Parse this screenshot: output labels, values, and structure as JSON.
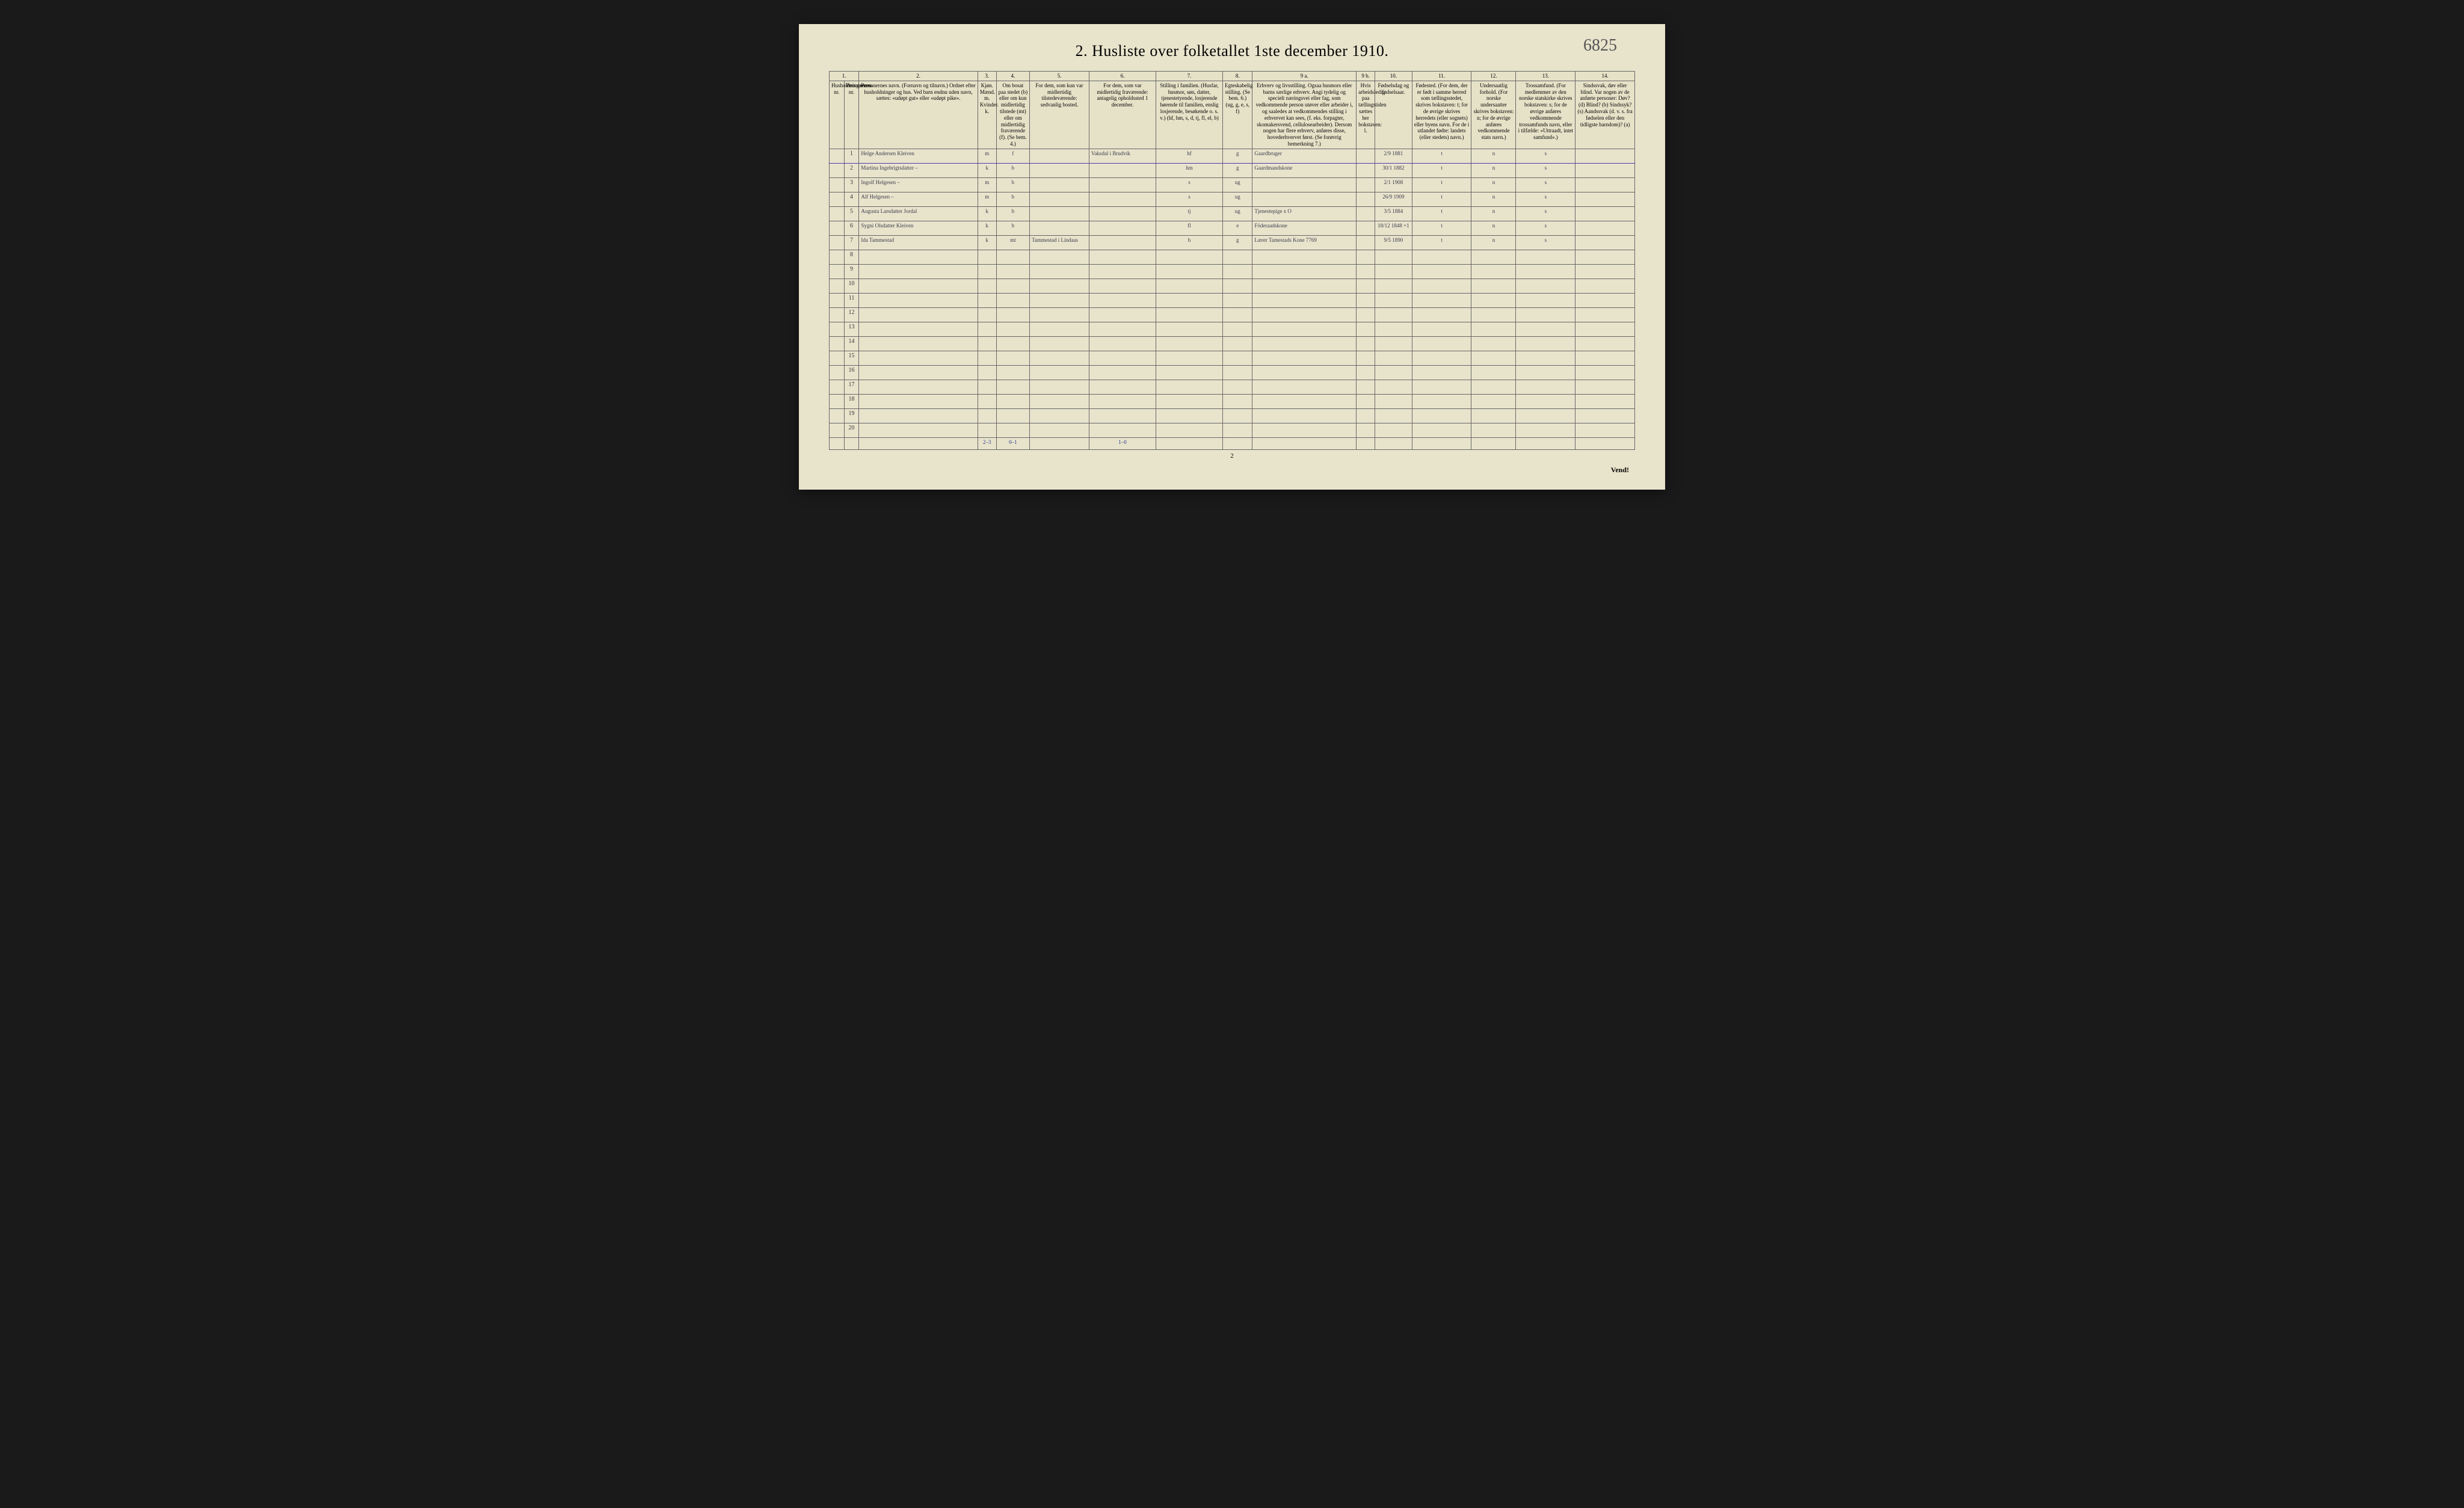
{
  "meta": {
    "title": "2.  Husliste over folketallet 1ste december 1910.",
    "page_number_handwritten": "6825",
    "page_center_number": "2",
    "vend": "Vend!",
    "background_color": "#e8e4cc",
    "border_color": "#666666",
    "handwriting_color": "#3a3a4a",
    "underline_color": "#4a3aa8",
    "footer_color": "#2b3a8a"
  },
  "columns": {
    "numbers": [
      "1.",
      "2.",
      "3.",
      "4.",
      "5.",
      "6.",
      "7.",
      "8.",
      "9 a.",
      "9 b.",
      "10.",
      "11.",
      "12.",
      "13.",
      "14."
    ],
    "widths_pct": [
      2,
      2,
      16,
      2.5,
      4.5,
      8,
      9,
      9,
      4,
      14,
      2.5,
      5,
      8,
      6,
      8,
      8
    ],
    "headers": [
      "Husholdningernes nr.",
      "Personernes nr.",
      "Personernes navn.\n(Fornavn og tilnavn.)\nOrdnet efter husholdninger og hus.\nVed barn endnu uden navn, sættes: «udøpt gut» eller «udøpt pike».",
      "Kjøn.\nMænd. m.  Kvinder. k.",
      "Om bosat paa stedet (b) eller om kun midlertidig tilstede (mt) eller om midlertidig fraværende (f). (Se bem. 4.)",
      "For dem, som kun var midlertidig tilstedeværende:\nsedvanlig bosted.",
      "For dem, som var midlertidig fraværende:\nantagelig opholdssted 1 december.",
      "Stilling i familien.\n(Husfar, husmor, søn, datter, tjenestetyende, losjerende hørende til familien, enslig losjerende, besøkende o. s. v.)\n(hf, hm, s, d, tj, fl, el, b)",
      "Egteskabelig stilling.\n(Se bem. 6.)\n(ug, g, e, s, f)",
      "Erhverv og livsstilling.\nOgsaa husmors eller barns særlige erhverv. Angi tydelig og specielt næringsvei eller fag, som vedkommende person utøver eller arbeider i, og saaledes at vedkommendes stilling i erhvervet kan sees, (f. eks. forpagter, skomakersvend, cellulosearbeider). Dersom nogen har flere erhverv, anføres disse, hovederhvervet først. (Se forøvrig bemerkning 7.)",
      "Hvis arbeidsledig paa tællingstiden sættes her bokstaven: l.",
      "Fødselsdag og fødselsaar.",
      "Fødested.\n(For dem, der er født i samme herred som tællingsstedet, skrives bokstaven: t; for de øvrige skrives herredets (eller sognets) eller byens navn. For de i utlandet fødte: landets (eller stedets) navn.)",
      "Undersaatlig forhold.\n(For norske undersaatter skrives bokstaven: n; for de øvrige anføres vedkommende stats navn.)",
      "Trossamfund.\n(For medlemmer av den norske statskirke skrives bokstaven: s; for de øvrige anføres vedkommende trossamfunds navn, eller i tilfælde: «Uttraadt, intet samfund».)",
      "Sindssvak, døv eller blind.\nVar nogen av de anførte personer:\nDøv? (d)  Blind? (b)  Sindssyk? (s)  Aandssvak (d. v. s. fra fødselen eller den tidligste barndom)? (a)"
    ]
  },
  "rows": [
    {
      "n": "1",
      "name": "Helge Andersen Kleiven",
      "sex": "m",
      "res": "f",
      "mt": "",
      "fr": "Vaksdal i Brudvik",
      "fam": "hf",
      "eg": "g",
      "occ": "Gaardbruger",
      "led": "",
      "dob": "2/9 1881",
      "born": "t",
      "nat": "n",
      "rel": "s",
      "dis": ""
    },
    {
      "n": "2",
      "name": "Martina Ingebrigtsdatter –",
      "sex": "k",
      "res": "b",
      "mt": "",
      "fr": "",
      "fam": "hm",
      "eg": "g",
      "occ": "Gaardmandskone",
      "led": "",
      "dob": "30/1 1882",
      "born": "t",
      "nat": "n",
      "rel": "s",
      "dis": ""
    },
    {
      "n": "3",
      "name": "Ingolf Helgesen   –",
      "sex": "m",
      "res": "b",
      "mt": "",
      "fr": "",
      "fam": "s",
      "eg": "ug",
      "occ": "",
      "led": "",
      "dob": "2/1 1908",
      "born": "t",
      "nat": "n",
      "rel": "s",
      "dis": ""
    },
    {
      "n": "4",
      "name": "Alf Helgesen   –",
      "sex": "m",
      "res": "b",
      "mt": "",
      "fr": "",
      "fam": "s",
      "eg": "ug",
      "occ": "",
      "led": "",
      "dob": "26/9 1909",
      "born": "t",
      "nat": "n",
      "rel": "s",
      "dis": ""
    },
    {
      "n": "5",
      "name": "Augusta Larsdatter Jordal",
      "sex": "k",
      "res": "b",
      "mt": "",
      "fr": "",
      "fam": "tj",
      "eg": "ug",
      "occ": "Tjenestepige  x O",
      "led": "",
      "dob": "3/5 1884",
      "born": "t",
      "nat": "n",
      "rel": "s",
      "dis": ""
    },
    {
      "n": "6",
      "name": "Sygni Olsdatter Kleiven",
      "sex": "k",
      "res": "b",
      "mt": "",
      "fr": "",
      "fam": "fl",
      "eg": "e",
      "occ": "Föderaadskone",
      "led": "",
      "dob": "18/12 1848 +1",
      "born": "t",
      "nat": "n",
      "rel": "s",
      "dis": ""
    },
    {
      "n": "7",
      "name": "Ida Tammestad",
      "sex": "k",
      "res": "mt",
      "mt": "Tammestad i Lindaas",
      "fr": "",
      "fam": "b",
      "eg": "g",
      "occ": "Lærer Tamestads Kone  7769",
      "led": "",
      "dob": "9/5 1890",
      "born": "t",
      "nat": "n",
      "rel": "s",
      "dis": ""
    }
  ],
  "empty_rows": [
    "8",
    "9",
    "10",
    "11",
    "12",
    "13",
    "14",
    "15",
    "16",
    "17",
    "18",
    "19",
    "20"
  ],
  "footer_tallies": [
    "2–3",
    "0–1",
    "1–0"
  ]
}
